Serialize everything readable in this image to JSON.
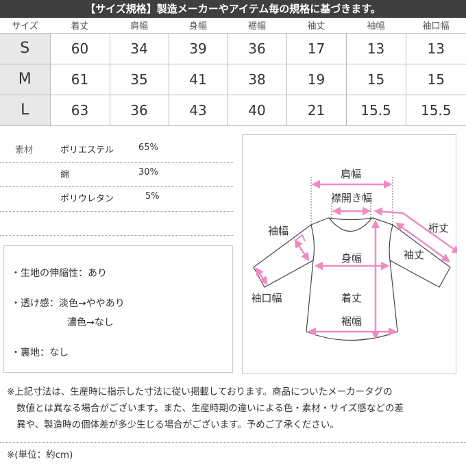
{
  "header": {
    "title": "【サイズ規格】製造メーカーやアイテム毎の規格に基づきます。"
  },
  "size_table": {
    "columns": [
      "サイズ",
      "着丈",
      "肩幅",
      "身幅",
      "裾幅",
      "袖丈",
      "袖幅",
      "袖口幅"
    ],
    "rows": [
      [
        "S",
        "60",
        "34",
        "39",
        "36",
        "17",
        "13",
        "13"
      ],
      [
        "M",
        "61",
        "35",
        "41",
        "38",
        "19",
        "15",
        "15"
      ],
      [
        "L",
        "63",
        "36",
        "43",
        "40",
        "21",
        "15.5",
        "15.5"
      ]
    ]
  },
  "materials": {
    "label": "素材",
    "items": [
      {
        "name": "ポリエステル",
        "pct": "65%"
      },
      {
        "name": "綿",
        "pct": "30%"
      },
      {
        "name": "ポリウレタン",
        "pct": "5%"
      }
    ]
  },
  "notes": [
    "・生地の伸縮性：あり",
    "・透け感：淡色→ややあり",
    "濃色→なし",
    "・裏地：なし"
  ],
  "diagram": {
    "labels": {
      "shoulder": "肩幅",
      "neck": "襟開き幅",
      "sleeve_width": "袖幅",
      "body": "身幅",
      "sleeve_length": "袖丈",
      "yuki": "裄丈",
      "cuff": "袖口幅",
      "length": "着丈",
      "hem": "裾幅"
    },
    "arrow_color": "#f08cc0"
  },
  "footer": {
    "disclaimer_lines": [
      "※上記寸法は、生産時に指示した寸法に従い掲載しております。商品についたメーカータグの",
      "数値とは異なる場合がございます。また、生産時期の違いによる色・素材・サイズ感などの差",
      "異や、製造時の個体差が多少生じる場合がございます。予めご了承ください。"
    ],
    "unit": "※(単位：約cm)"
  }
}
